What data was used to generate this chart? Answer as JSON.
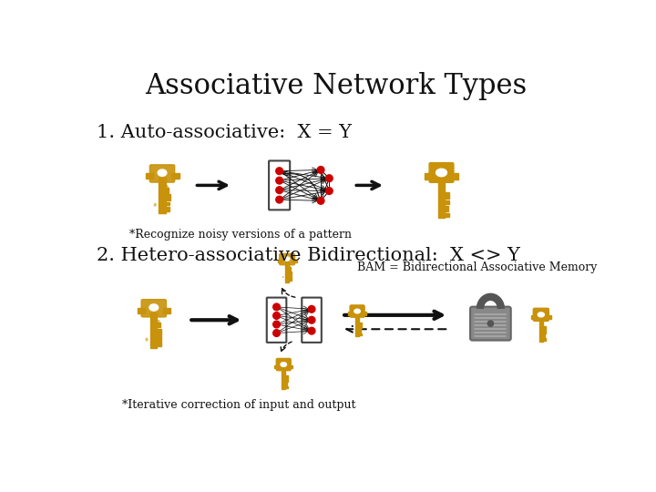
{
  "title": "Associative Network Types",
  "title_fontsize": 22,
  "title_font": "serif",
  "bg_color": "#ffffff",
  "section1_label": "1. Auto-associative:  X = Y",
  "section1_note": "*Recognize noisy versions of a pattern",
  "section2_label": "2. Hetero-associative Bidirectional:  X <> Y",
  "section2_note": "*Iterative correction of input and output",
  "bam_label": "BAM = Bidirectional Associative Memory",
  "text_color": "#111111",
  "key_color": "#c8920a",
  "node_color": "#cc0000",
  "note_fontsize": 9,
  "label_fontsize": 15
}
